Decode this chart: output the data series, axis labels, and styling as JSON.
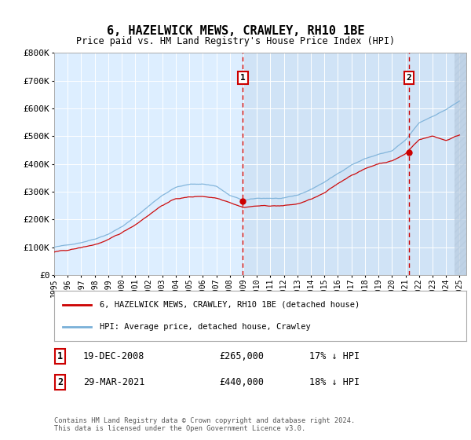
{
  "title": "6, HAZELWICK MEWS, CRAWLEY, RH10 1BE",
  "subtitle": "Price paid vs. HM Land Registry's House Price Index (HPI)",
  "plot_bg_color": "#ddeeff",
  "ylim": [
    0,
    800000
  ],
  "yticks": [
    0,
    100000,
    200000,
    300000,
    400000,
    500000,
    600000,
    700000,
    800000
  ],
  "ytick_labels": [
    "£0",
    "£100K",
    "£200K",
    "£300K",
    "£400K",
    "£500K",
    "£600K",
    "£700K",
    "£800K"
  ],
  "xlim_start": 1995.0,
  "xlim_end": 2025.5,
  "sale1_x": 2008.97,
  "sale1_y": 265000,
  "sale1_label": "1",
  "sale1_date": "19-DEC-2008",
  "sale1_price": "£265,000",
  "sale1_hpi": "17% ↓ HPI",
  "sale2_x": 2021.24,
  "sale2_y": 440000,
  "sale2_label": "2",
  "sale2_date": "29-MAR-2021",
  "sale2_price": "£440,000",
  "sale2_hpi": "18% ↓ HPI",
  "red_line_color": "#cc0000",
  "blue_line_color": "#7ab0d8",
  "legend_label_red": "6, HAZELWICK MEWS, CRAWLEY, RH10 1BE (detached house)",
  "legend_label_blue": "HPI: Average price, detached house, Crawley",
  "footer": "Contains HM Land Registry data © Crown copyright and database right 2024.\nThis data is licensed under the Open Government Licence v3.0.",
  "hpi_annual": [
    100000,
    107000,
    118000,
    132000,
    151000,
    178000,
    212000,
    252000,
    291000,
    321000,
    330000,
    332000,
    325000,
    291000,
    272000,
    278000,
    279000,
    278000,
    287000,
    308000,
    335000,
    365000,
    398000,
    420000,
    436000,
    447000,
    484000,
    545000,
    570000,
    595000,
    625000
  ],
  "red_annual": [
    82000,
    88000,
    97000,
    108000,
    124000,
    148000,
    178000,
    215000,
    251000,
    274000,
    280000,
    283000,
    278000,
    265000,
    248000,
    254000,
    254000,
    255000,
    260000,
    277000,
    298000,
    330000,
    362000,
    385000,
    404000,
    415000,
    440000,
    492000,
    505000,
    490000,
    510000
  ]
}
